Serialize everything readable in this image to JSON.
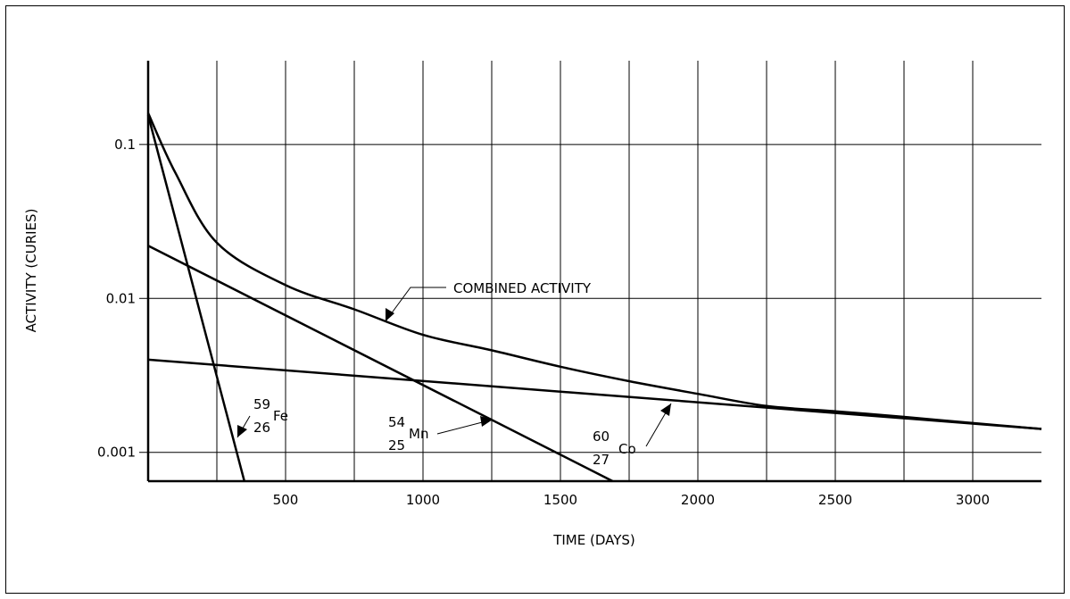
{
  "chart_data": {
    "type": "line",
    "xlabel": "TIME (DAYS)",
    "ylabel": "ACTIVITY (CURIES)",
    "yscale": "log",
    "xlim": [
      0,
      3250
    ],
    "ylim": [
      0.00065,
      0.35
    ],
    "x_ticks": [
      {
        "value": 500,
        "label": "500"
      },
      {
        "value": 1000,
        "label": "1000"
      },
      {
        "value": 1500,
        "label": "1500"
      },
      {
        "value": 2000,
        "label": "2000"
      },
      {
        "value": 2500,
        "label": "2500"
      },
      {
        "value": 3000,
        "label": "3000"
      }
    ],
    "x_gridlines": [
      250,
      500,
      750,
      1000,
      1250,
      1500,
      1750,
      2000,
      2250,
      2500,
      2750,
      3000
    ],
    "y_ticks": [
      {
        "value": 0.1,
        "label": "0.1"
      },
      {
        "value": 0.01,
        "label": "0.01"
      },
      {
        "value": 0.001,
        "label": "0.001"
      }
    ],
    "grid": true,
    "series": [
      {
        "key": "combined",
        "x": [
          0,
          100,
          250,
          500,
          750,
          1000,
          1250,
          1500,
          1750,
          2000,
          2250,
          2500,
          2750,
          3000,
          3250
        ],
        "y": [
          0.16,
          0.065,
          0.023,
          0.0122,
          0.0085,
          0.0058,
          0.0046,
          0.0036,
          0.0029,
          0.0024,
          0.002,
          0.00185,
          0.0017,
          0.00155,
          0.00142
        ]
      },
      {
        "key": "fe59",
        "x": [
          0,
          350
        ],
        "y": [
          0.155,
          0.00065
        ]
      },
      {
        "key": "mn54",
        "x": [
          0,
          1690
        ],
        "y": [
          0.022,
          0.00065
        ]
      },
      {
        "key": "co60",
        "x": [
          0,
          3250
        ],
        "y": [
          0.004,
          0.00142
        ]
      }
    ],
    "annotations": {
      "combined": {
        "text": "COMBINED ACTIVITY"
      },
      "fe": {
        "mass": "59",
        "z": "26",
        "symbol": "Fe"
      },
      "mn": {
        "mass": "54",
        "z": "25",
        "symbol": "Mn"
      },
      "co": {
        "mass": "60",
        "z": "27",
        "symbol": "Co"
      }
    }
  }
}
